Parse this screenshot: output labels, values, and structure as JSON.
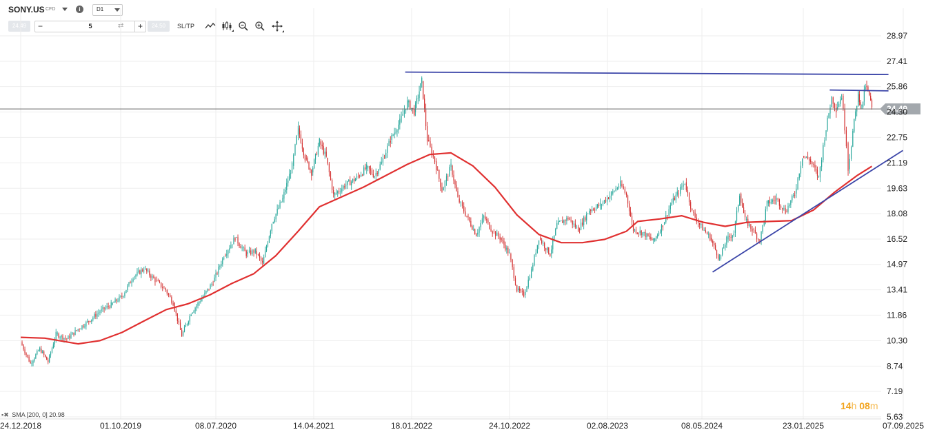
{
  "header": {
    "symbol": "SONY.US",
    "instrument_type": "CFD",
    "timeframe": "D1",
    "sell_price": "24.49",
    "buy_price": "24.50",
    "quantity": "5",
    "minus": "−",
    "plus": "+",
    "sltp_label": "SL/TP",
    "info_glyph": "i",
    "swap_glyph": "⇄"
  },
  "tools": [
    "line-chart-icon",
    "candlestick-icon",
    "zoom-out-icon",
    "zoom-in-icon",
    "crosshair-icon"
  ],
  "indicator_label": "SMA [200, 0] 20.98",
  "timer": {
    "hours": "14",
    "h": "h",
    "minutes": "08",
    "m": "m"
  },
  "chart_data": {
    "type": "candlestick",
    "title": "",
    "current_price": 24.49,
    "current_price_label": "24.49",
    "ylim": [
      5.63,
      30.5
    ],
    "y_ticks": [
      "5.63",
      "7.19",
      "8.74",
      "10.30",
      "11.86",
      "13.41",
      "14.97",
      "16.52",
      "18.08",
      "19.63",
      "21.19",
      "22.75",
      "24.30",
      "25.86",
      "27.41",
      "28.97"
    ],
    "x_ticks": [
      "24.12.2018",
      "01.10.2019",
      "08.07.2020",
      "14.04.2021",
      "18.01.2022",
      "24.10.2022",
      "02.08.2023",
      "08.05.2024",
      "23.01.2025",
      "07.09.2025"
    ],
    "price_path": [
      [
        "2018-12-24",
        10.2
      ],
      [
        "2019-01-20",
        8.9
      ],
      [
        "2019-02-15",
        9.8
      ],
      [
        "2019-03-10",
        9.0
      ],
      [
        "2019-04-01",
        10.7
      ],
      [
        "2019-05-01",
        10.4
      ],
      [
        "2019-06-01",
        11.0
      ],
      [
        "2019-07-01",
        11.5
      ],
      [
        "2019-08-01",
        12.1
      ],
      [
        "2019-09-01",
        12.5
      ],
      [
        "2019-10-01",
        13.0
      ],
      [
        "2019-11-01",
        14.2
      ],
      [
        "2019-12-01",
        14.7
      ],
      [
        "2020-01-01",
        14.0
      ],
      [
        "2020-01-30",
        13.4
      ],
      [
        "2020-02-20",
        12.6
      ],
      [
        "2020-03-15",
        10.6
      ],
      [
        "2020-04-10",
        12.0
      ],
      [
        "2020-05-10",
        12.9
      ],
      [
        "2020-06-10",
        13.9
      ],
      [
        "2020-07-10",
        15.5
      ],
      [
        "2020-08-10",
        16.6
      ],
      [
        "2020-09-10",
        15.6
      ],
      [
        "2020-10-05",
        15.8
      ],
      [
        "2020-10-25",
        15.0
      ],
      [
        "2020-11-20",
        17.5
      ],
      [
        "2020-12-20",
        19.0
      ],
      [
        "2021-01-15",
        21.0
      ],
      [
        "2021-02-01",
        23.3
      ],
      [
        "2021-02-20",
        21.5
      ],
      [
        "2021-03-10",
        20.6
      ],
      [
        "2021-04-01",
        22.5
      ],
      [
        "2021-04-20",
        21.5
      ],
      [
        "2021-05-10",
        19.2
      ],
      [
        "2021-06-10",
        19.8
      ],
      [
        "2021-07-10",
        20.2
      ],
      [
        "2021-08-10",
        20.9
      ],
      [
        "2021-09-01",
        20.4
      ],
      [
        "2021-09-20",
        21.2
      ],
      [
        "2021-10-15",
        22.6
      ],
      [
        "2021-11-10",
        23.7
      ],
      [
        "2021-12-01",
        24.9
      ],
      [
        "2021-12-20",
        24.3
      ],
      [
        "2022-01-03",
        25.6
      ],
      [
        "2022-01-10",
        26.2
      ],
      [
        "2022-01-25",
        22.6
      ],
      [
        "2022-02-15",
        21.3
      ],
      [
        "2022-03-07",
        19.5
      ],
      [
        "2022-04-01",
        21.0
      ],
      [
        "2022-04-20",
        19.0
      ],
      [
        "2022-05-15",
        17.9
      ],
      [
        "2022-06-10",
        16.8
      ],
      [
        "2022-07-01",
        17.9
      ],
      [
        "2022-07-25",
        17.0
      ],
      [
        "2022-08-15",
        16.6
      ],
      [
        "2022-09-10",
        15.6
      ],
      [
        "2022-10-01",
        13.4
      ],
      [
        "2022-10-20",
        13.1
      ],
      [
        "2022-11-10",
        14.6
      ],
      [
        "2022-12-01",
        16.6
      ],
      [
        "2023-01-01",
        15.6
      ],
      [
        "2023-01-20",
        17.4
      ],
      [
        "2023-02-20",
        17.8
      ],
      [
        "2023-03-20",
        17.1
      ],
      [
        "2023-04-20",
        18.3
      ],
      [
        "2023-05-20",
        18.6
      ],
      [
        "2023-06-20",
        19.3
      ],
      [
        "2023-07-15",
        19.9
      ],
      [
        "2023-08-01",
        19.2
      ],
      [
        "2023-08-20",
        17.1
      ],
      [
        "2023-09-15",
        16.9
      ],
      [
        "2023-10-15",
        16.4
      ],
      [
        "2023-11-10",
        17.4
      ],
      [
        "2023-12-01",
        18.6
      ],
      [
        "2023-12-20",
        19.3
      ],
      [
        "2024-01-10",
        20.0
      ],
      [
        "2024-01-30",
        18.2
      ],
      [
        "2024-02-20",
        17.4
      ],
      [
        "2024-03-20",
        16.6
      ],
      [
        "2024-04-15",
        15.3
      ],
      [
        "2024-05-05",
        16.5
      ],
      [
        "2024-05-25",
        16.9
      ],
      [
        "2024-06-10",
        19.3
      ],
      [
        "2024-06-25",
        17.7
      ],
      [
        "2024-07-15",
        17.1
      ],
      [
        "2024-08-05",
        16.4
      ],
      [
        "2024-08-25",
        18.7
      ],
      [
        "2024-09-20",
        19.0
      ],
      [
        "2024-10-15",
        18.2
      ],
      [
        "2024-11-10",
        19.3
      ],
      [
        "2024-12-01",
        21.6
      ],
      [
        "2024-12-20",
        21.4
      ],
      [
        "2025-01-05",
        20.8
      ],
      [
        "2025-01-15",
        20.3
      ],
      [
        "2025-02-01",
        22.8
      ],
      [
        "2025-02-20",
        25.2
      ],
      [
        "2025-03-05",
        24.5
      ],
      [
        "2025-03-20",
        25.3
      ],
      [
        "2025-04-02",
        22.4
      ],
      [
        "2025-04-07",
        20.8
      ],
      [
        "2025-04-20",
        23.1
      ],
      [
        "2025-05-05",
        25.4
      ],
      [
        "2025-05-15",
        24.6
      ],
      [
        "2025-05-25",
        25.9
      ],
      [
        "2025-06-05",
        25.3
      ],
      [
        "2025-06-12",
        24.49
      ]
    ],
    "sma_200": [
      [
        "2018-12-24",
        10.5
      ],
      [
        "2019-03-01",
        10.45
      ],
      [
        "2019-06-01",
        10.1
      ],
      [
        "2019-08-01",
        10.3
      ],
      [
        "2019-10-01",
        10.8
      ],
      [
        "2019-12-01",
        11.5
      ],
      [
        "2020-02-01",
        12.2
      ],
      [
        "2020-04-01",
        12.55
      ],
      [
        "2020-06-01",
        13.1
      ],
      [
        "2020-08-01",
        13.8
      ],
      [
        "2020-10-01",
        14.4
      ],
      [
        "2020-12-01",
        15.5
      ],
      [
        "2021-02-01",
        17.0
      ],
      [
        "2021-04-01",
        18.5
      ],
      [
        "2021-06-01",
        19.1
      ],
      [
        "2021-08-01",
        19.7
      ],
      [
        "2021-10-01",
        20.4
      ],
      [
        "2021-12-01",
        21.1
      ],
      [
        "2022-02-01",
        21.7
      ],
      [
        "2022-04-01",
        21.8
      ],
      [
        "2022-06-01",
        21.0
      ],
      [
        "2022-08-01",
        19.7
      ],
      [
        "2022-10-01",
        18.0
      ],
      [
        "2022-12-01",
        16.8
      ],
      [
        "2023-02-01",
        16.3
      ],
      [
        "2023-04-01",
        16.3
      ],
      [
        "2023-06-01",
        16.5
      ],
      [
        "2023-08-01",
        17.0
      ],
      [
        "2023-09-01",
        17.6
      ],
      [
        "2023-11-01",
        17.75
      ],
      [
        "2024-01-01",
        17.95
      ],
      [
        "2024-03-01",
        17.55
      ],
      [
        "2024-05-01",
        17.3
      ],
      [
        "2024-07-01",
        17.55
      ],
      [
        "2024-09-01",
        17.6
      ],
      [
        "2024-11-01",
        17.65
      ],
      [
        "2025-01-01",
        18.3
      ],
      [
        "2025-03-01",
        19.4
      ],
      [
        "2025-05-01",
        20.4
      ],
      [
        "2025-06-12",
        20.98
      ]
    ],
    "trendlines": [
      {
        "color": "#3b45a8",
        "from": [
          "2021-11-25",
          26.75
        ],
        "to": [
          "2025-07-28",
          26.6
        ]
      },
      {
        "color": "#3b45a8",
        "from": [
          "2025-02-15",
          25.65
        ],
        "to": [
          "2025-07-28",
          25.6
        ]
      },
      {
        "color": "#3b45a8",
        "from": [
          "2024-03-27",
          14.5
        ],
        "to": [
          "2025-09-06",
          21.95
        ]
      }
    ],
    "colors": {
      "up": "#26a69a",
      "down": "#d32f2f",
      "sma": "#e03030",
      "trendline": "#3b45a8",
      "price_line": "#666666",
      "price_tag": "#a3a8ad"
    }
  }
}
